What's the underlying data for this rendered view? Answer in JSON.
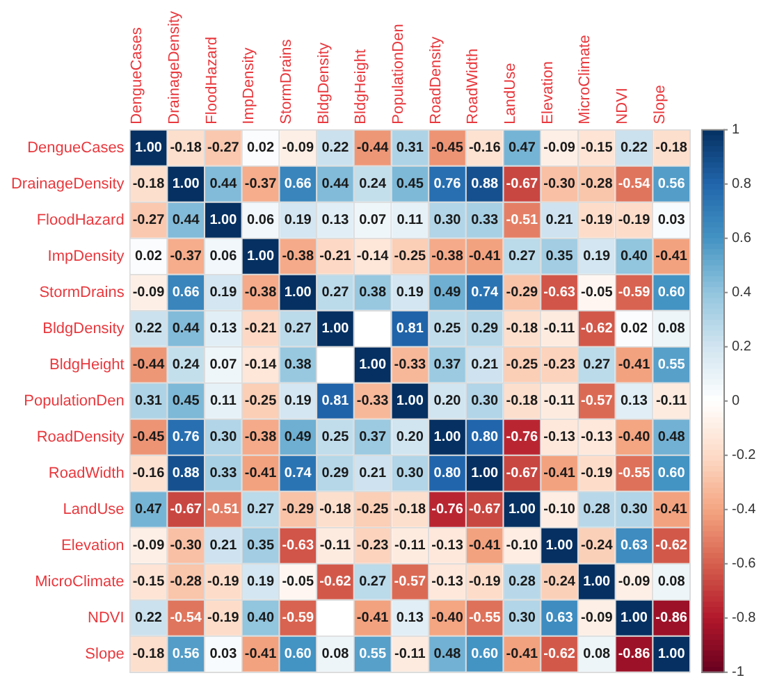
{
  "chart_data": {
    "type": "heatmap",
    "categories": [
      "DengueCases",
      "DrainageDensity",
      "FloodHazard",
      "ImpDensity",
      "StormDrains",
      "BldgDensity",
      "BldgHeight",
      "PopulationDen",
      "RoadDensity",
      "RoadWidth",
      "LandUse",
      "Elevation",
      "MicroClimate",
      "NDVI",
      "Slope"
    ],
    "y_categories": [
      "DengueCases",
      "DrainageDensity",
      "FloodHazard",
      "ImpDensity",
      "StormDrains",
      "BldgDensity",
      "BldgHeight",
      "PopulationDen",
      "RoadDensity",
      "RoadWidth",
      "LandUse",
      "Elevation",
      "MicroClimate",
      "NDVI",
      "Slope"
    ],
    "cells": [
      [
        1,
        -0.18,
        -0.27,
        0.02,
        -0.09,
        0.22,
        -0.44,
        0.31,
        -0.45,
        -0.16,
        0.47,
        -0.09,
        -0.15,
        0.22,
        -0.18
      ],
      [
        -0.18,
        1,
        0.44,
        -0.37,
        0.66,
        0.44,
        0.24,
        0.45,
        0.76,
        0.88,
        -0.67,
        -0.3,
        -0.28,
        -0.54,
        0.56
      ],
      [
        -0.27,
        0.44,
        1,
        0.06,
        0.19,
        0.13,
        0.07,
        0.11,
        0.3,
        0.33,
        -0.51,
        0.21,
        -0.19,
        -0.19,
        0.03
      ],
      [
        0.02,
        -0.37,
        0.06,
        1,
        -0.38,
        -0.21,
        -0.14,
        -0.25,
        -0.38,
        -0.41,
        0.27,
        0.35,
        0.19,
        0.4,
        -0.41
      ],
      [
        -0.09,
        0.66,
        0.19,
        -0.38,
        1,
        0.27,
        0.38,
        0.19,
        0.49,
        0.74,
        -0.29,
        -0.63,
        -0.05,
        -0.59,
        0.6
      ],
      [
        0.22,
        0.44,
        0.13,
        -0.21,
        0.27,
        1,
        null,
        0.81,
        0.25,
        0.29,
        -0.18,
        -0.11,
        -0.62,
        0.02,
        0.08
      ],
      [
        -0.44,
        0.24,
        0.07,
        -0.14,
        0.38,
        null,
        1,
        -0.33,
        0.37,
        0.21,
        -0.25,
        -0.23,
        0.27,
        -0.41,
        0.55
      ],
      [
        0.31,
        0.45,
        0.11,
        -0.25,
        0.19,
        0.81,
        -0.33,
        1,
        0.2,
        0.3,
        -0.18,
        -0.11,
        -0.57,
        0.13,
        -0.11
      ],
      [
        -0.45,
        0.76,
        0.3,
        -0.38,
        0.49,
        0.25,
        0.37,
        0.2,
        1,
        0.8,
        -0.76,
        -0.13,
        -0.13,
        -0.4,
        0.48
      ],
      [
        -0.16,
        0.88,
        0.33,
        -0.41,
        0.74,
        0.29,
        0.21,
        0.3,
        0.8,
        1,
        -0.67,
        -0.41,
        -0.19,
        -0.55,
        0.6
      ],
      [
        0.47,
        -0.67,
        -0.51,
        0.27,
        -0.29,
        -0.18,
        -0.25,
        -0.18,
        -0.76,
        -0.67,
        1,
        -0.1,
        0.28,
        0.3,
        -0.41
      ],
      [
        -0.09,
        -0.3,
        0.21,
        0.35,
        -0.63,
        -0.11,
        -0.23,
        -0.11,
        -0.13,
        -0.41,
        -0.1,
        1,
        -0.24,
        0.63,
        -0.62
      ],
      [
        -0.15,
        -0.28,
        -0.19,
        0.19,
        -0.05,
        -0.62,
        0.27,
        -0.57,
        -0.13,
        -0.19,
        0.28,
        -0.24,
        1,
        -0.09,
        0.08
      ],
      [
        0.22,
        -0.54,
        -0.19,
        0.4,
        -0.59,
        null,
        -0.41,
        0.13,
        -0.4,
        -0.55,
        0.3,
        0.63,
        -0.09,
        1,
        -0.86
      ],
      [
        -0.18,
        0.56,
        0.03,
        -0.41,
        0.6,
        0.08,
        0.55,
        -0.11,
        0.48,
        0.6,
        -0.41,
        -0.62,
        0.08,
        -0.86,
        1
      ]
    ],
    "cell_labels": [
      [
        "1.00",
        "-0.18",
        "-0.27",
        "0.02",
        "-0.09",
        "0.22",
        "-0.44",
        "0.31",
        "-0.45",
        "-0.16",
        "0.47",
        "-0.09",
        "-0.15",
        "0.22",
        "-0.18"
      ],
      [
        "-0.18",
        "1.00",
        "0.44",
        "-0.37",
        "0.66",
        "0.44",
        "0.24",
        "0.45",
        "0.76",
        "0.88",
        "-0.67",
        "-0.30",
        "-0.28",
        "-0.54",
        "0.56"
      ],
      [
        "-0.27",
        "0.44",
        "1.00",
        "0.06",
        "0.19",
        "0.13",
        "0.07",
        "0.11",
        "0.30",
        "0.33",
        "-0.51",
        "0.21",
        "-0.19",
        "-0.19",
        "0.03"
      ],
      [
        "0.02",
        "-0.37",
        "0.06",
        "1.00",
        "-0.38",
        "-0.21",
        "-0.14",
        "-0.25",
        "-0.38",
        "-0.41",
        "0.27",
        "0.35",
        "0.19",
        "0.40",
        "-0.41"
      ],
      [
        "-0.09",
        "0.66",
        "0.19",
        "-0.38",
        "1.00",
        "0.27",
        "0.38",
        "0.19",
        "0.49",
        "0.74",
        "-0.29",
        "-0.63",
        "-0.05",
        "-0.59",
        "0.60"
      ],
      [
        "0.22",
        "0.44",
        "0.13",
        "-0.21",
        "0.27",
        "1.00",
        null,
        "0.81",
        "0.25",
        "0.29",
        "-0.18",
        "-0.11",
        "-0.62",
        "0.02",
        "0.08"
      ],
      [
        "-0.44",
        "0.24",
        "0.07",
        "-0.14",
        "0.38",
        null,
        "1.00",
        "-0.33",
        "0.37",
        "0.21",
        "-0.25",
        "-0.23",
        "0.27",
        "-0.41",
        "0.55"
      ],
      [
        "0.31",
        "0.45",
        "0.11",
        "-0.25",
        "0.19",
        "0.81",
        "-0.33",
        "1.00",
        "0.20",
        "0.30",
        "-0.18",
        "-0.11",
        "-0.57",
        "0.13",
        "-0.11"
      ],
      [
        "-0.45",
        "0.76",
        "0.30",
        "-0.38",
        "0.49",
        "0.25",
        "0.37",
        "0.20",
        "1.00",
        "0.80",
        "-0.76",
        "-0.13",
        "-0.13",
        "-0.40",
        "0.48"
      ],
      [
        "-0.16",
        "0.88",
        "0.33",
        "-0.41",
        "0.74",
        "0.29",
        "0.21",
        "0.30",
        "0.80",
        "1.00",
        "-0.67",
        "-0.41",
        "-0.19",
        "-0.55",
        "0.60"
      ],
      [
        "0.47",
        "-0.67",
        "-0.51",
        "0.27",
        "-0.29",
        "-0.18",
        "-0.25",
        "-0.18",
        "-0.76",
        "-0.67",
        "1.00",
        "-0.10",
        "0.28",
        "0.30",
        "-0.41"
      ],
      [
        "-0.09",
        "-0.30",
        "0.21",
        "0.35",
        "-0.63",
        "-0.11",
        "-0.23",
        "-0.11",
        "-0.13",
        "-0.41",
        "-0.10",
        "1.00",
        "-0.24",
        "0.63",
        "-0.62"
      ],
      [
        "-0.15",
        "-0.28",
        "-0.19",
        "0.19",
        "-0.05",
        "-0.62",
        "0.27",
        "-0.57",
        "-0.13",
        "-0.19",
        "0.28",
        "-0.24",
        "1.00",
        "-0.09",
        "0.08"
      ],
      [
        "0.22",
        "-0.54",
        "-0.19",
        "0.40",
        "-0.59",
        null,
        "-0.41",
        "0.13",
        "-0.40",
        "-0.55",
        "0.30",
        "0.63",
        "-0.09",
        "1.00",
        "-0.86"
      ],
      [
        "-0.18",
        "0.56",
        "0.03",
        "-0.41",
        "0.60",
        "0.08",
        "0.55",
        "-0.11",
        "0.48",
        "0.60",
        "-0.41",
        "-0.62",
        "0.08",
        "-0.86",
        "1.00"
      ]
    ],
    "data_labels": true,
    "clim": [
      -1,
      1
    ],
    "cticks": [
      -1,
      -0.8,
      -0.6,
      -0.4,
      -0.2,
      0,
      0.2,
      0.4,
      0.6,
      0.8,
      1
    ],
    "grid": true
  }
}
